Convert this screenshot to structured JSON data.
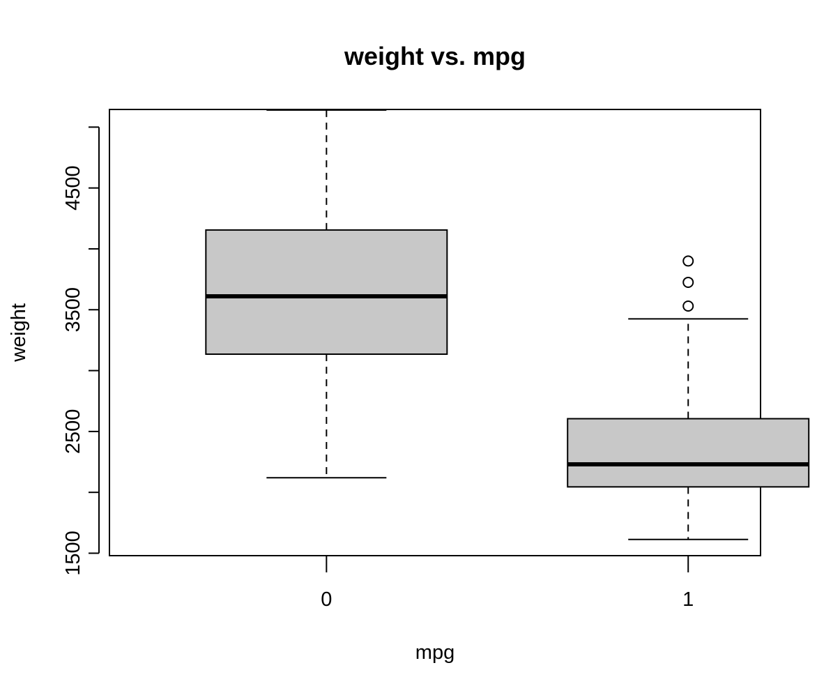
{
  "chart_data": {
    "type": "boxplot",
    "title": "weight vs. mpg",
    "xlabel": "mpg",
    "ylabel": "weight",
    "categories": [
      "0",
      "1"
    ],
    "ylim": [
      1480,
      5145
    ],
    "yticks": [
      1500,
      2000,
      2500,
      3000,
      3500,
      4000,
      4500,
      5000
    ],
    "ytick_labels": [
      "1500",
      "",
      "2500",
      "",
      "3500",
      "",
      "4500",
      ""
    ],
    "grid": false,
    "legend": "none",
    "boxes": [
      {
        "category": "0",
        "whisker_low": 2120,
        "q1": 3135,
        "median": 3610,
        "q3": 4155,
        "whisker_high": 5140,
        "outliers": []
      },
      {
        "category": "1",
        "whisker_low": 1613,
        "q1": 2045,
        "median": 2230,
        "q3": 2605,
        "whisker_high": 3425,
        "outliers": [
          3530,
          3725,
          3900
        ]
      }
    ],
    "colors": {
      "box_fill": "#c8c8c8",
      "stroke": "#000000"
    }
  }
}
